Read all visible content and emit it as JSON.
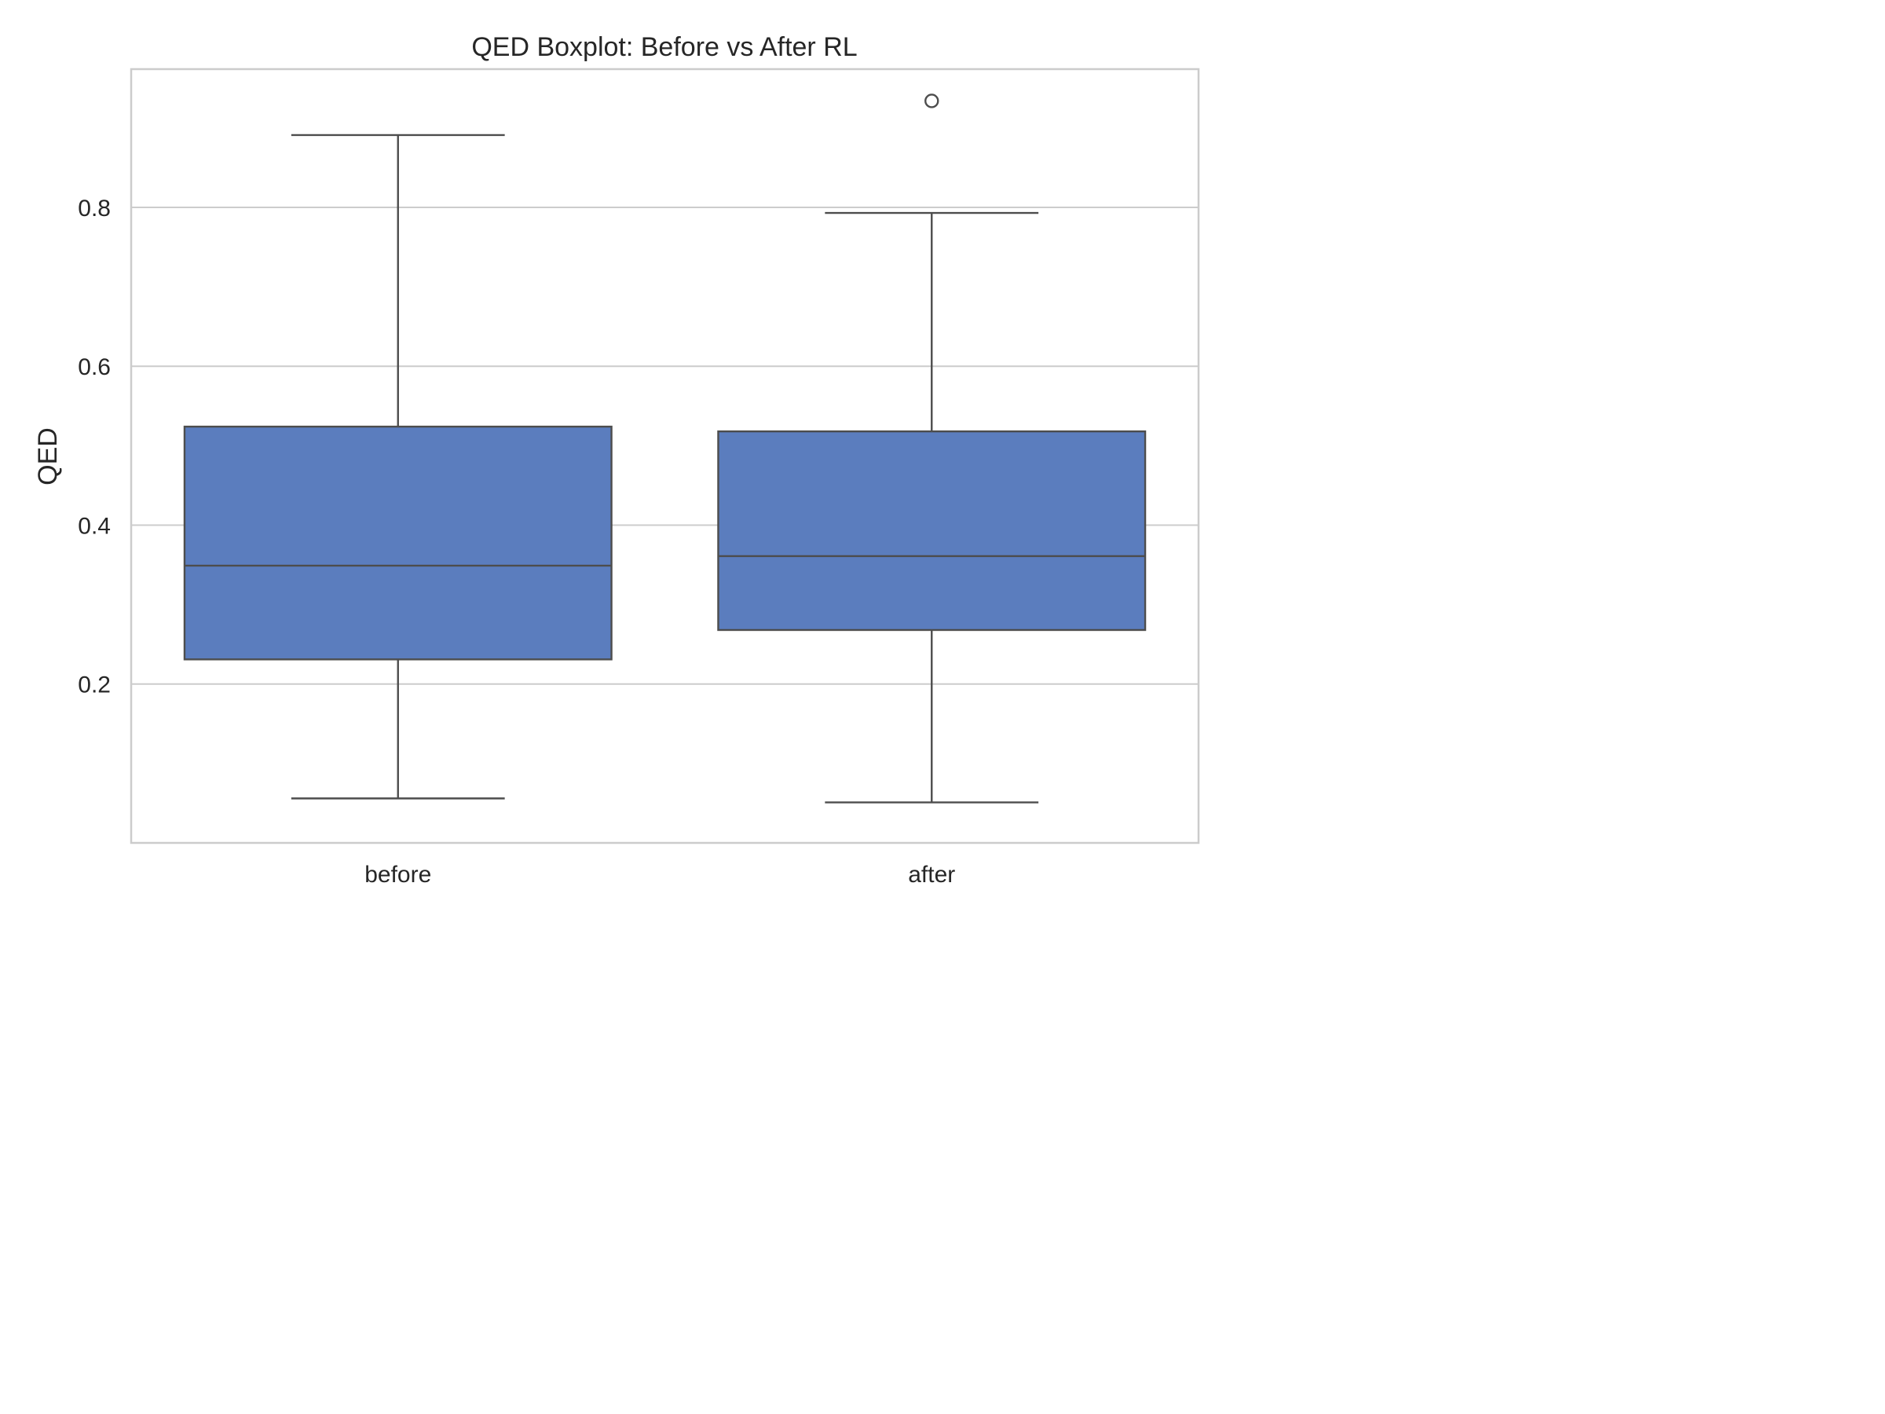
{
  "chart_data": {
    "type": "box",
    "title": "QED Boxplot: Before vs After RL",
    "xlabel": "",
    "ylabel": "QED",
    "ylim": [
      0.0,
      0.974
    ],
    "yticks": [
      0.2,
      0.4,
      0.6,
      0.8
    ],
    "ytick_labels": [
      "0.2",
      "0.4",
      "0.6",
      "0.8"
    ],
    "grid": "horizontal",
    "colors": {
      "box_fill": "#5b7dbe",
      "line": "#4d4d4d",
      "grid": "#cccccc",
      "text": "#262626"
    },
    "categories": [
      "before",
      "after"
    ],
    "boxes": [
      {
        "category": "before",
        "whisker_low": 0.056,
        "q1": 0.231,
        "median": 0.349,
        "q3": 0.524,
        "whisker_high": 0.891,
        "outliers": []
      },
      {
        "category": "after",
        "whisker_low": 0.051,
        "q1": 0.268,
        "median": 0.361,
        "q3": 0.518,
        "whisker_high": 0.793,
        "outliers": [
          0.934
        ]
      }
    ]
  }
}
